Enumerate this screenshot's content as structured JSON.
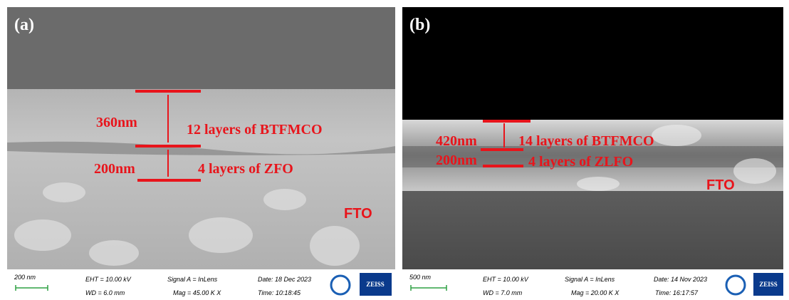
{
  "panels": [
    {
      "label": "(a)",
      "annotations": {
        "thick_top": "360nm",
        "layer_top": "12 layers of BTFMCO",
        "thick_bottom": "200nm",
        "layer_bottom": "4 layers of ZFO",
        "substrate": "FTO"
      },
      "info": {
        "scale": "200 nm",
        "eht": "EHT = 10.00 kV",
        "wd": "WD = 6.0 mm",
        "signal": "Signal A = InLens",
        "mag": "Mag =  45.00 K X",
        "date": "Date: 18 Dec 2023",
        "time": "Time: 10:18:45",
        "brand": "ZEISS"
      }
    },
    {
      "label": "(b)",
      "annotations": {
        "thick_top": "420nm",
        "layer_top": "14 layers of BTFMCO",
        "thick_bottom": "200nm",
        "layer_bottom": "4 layers of ZLFO",
        "substrate": "FTO"
      },
      "info": {
        "scale": "500 nm",
        "eht": "EHT = 10.00 kV",
        "wd": "WD =  7.0 mm",
        "signal": "Signal A = InLens",
        "mag": "Mag =  20.00 K X",
        "date": "Date: 14 Nov 2023",
        "time": "Time: 16:17:57",
        "brand": "ZEISS"
      }
    }
  ]
}
